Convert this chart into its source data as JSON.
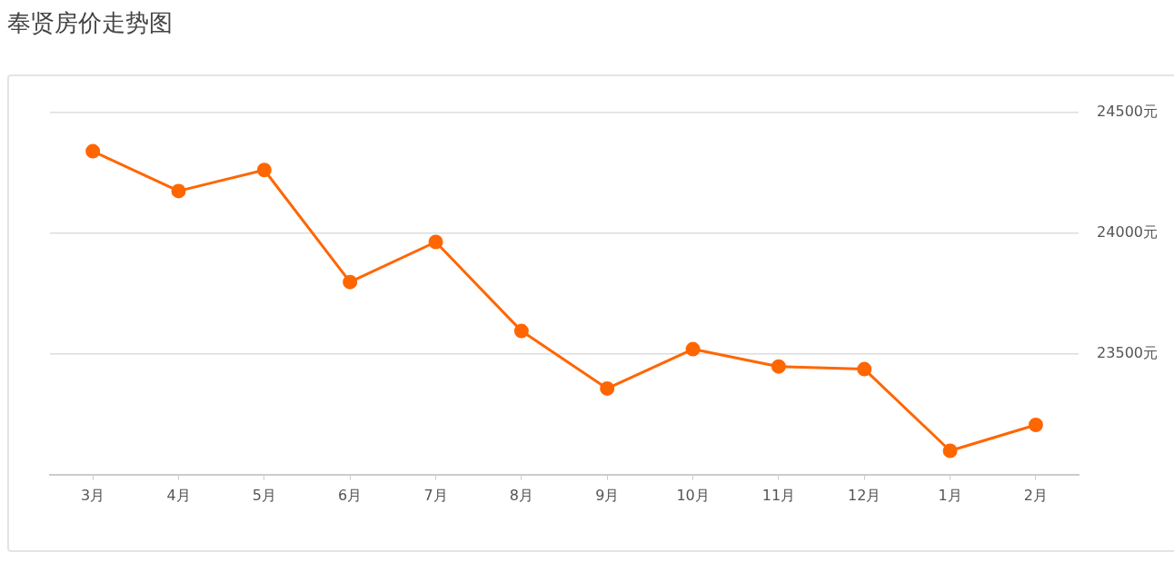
{
  "chart_data": {
    "type": "line",
    "title": "奉贤房价走势图",
    "categories": [
      "3月",
      "4月",
      "5月",
      "6月",
      "7月",
      "8月",
      "9月",
      "10月",
      "11月",
      "12月",
      "1月",
      "2月"
    ],
    "series": [
      {
        "color": "#ff6600",
        "values": [
          24340,
          24175,
          24262,
          23798,
          23964,
          23595,
          23357,
          23520,
          23448,
          23437,
          23099,
          23206
        ]
      }
    ],
    "ylim": [
      23000,
      24500
    ],
    "yticks": [
      {
        "value": 23500,
        "label": "23500元"
      },
      {
        "value": 24000,
        "label": "24000元"
      },
      {
        "value": 24500,
        "label": "24500元"
      }
    ],
    "grid": "y",
    "legend": false,
    "marker": "circle",
    "line_style": "solid"
  }
}
